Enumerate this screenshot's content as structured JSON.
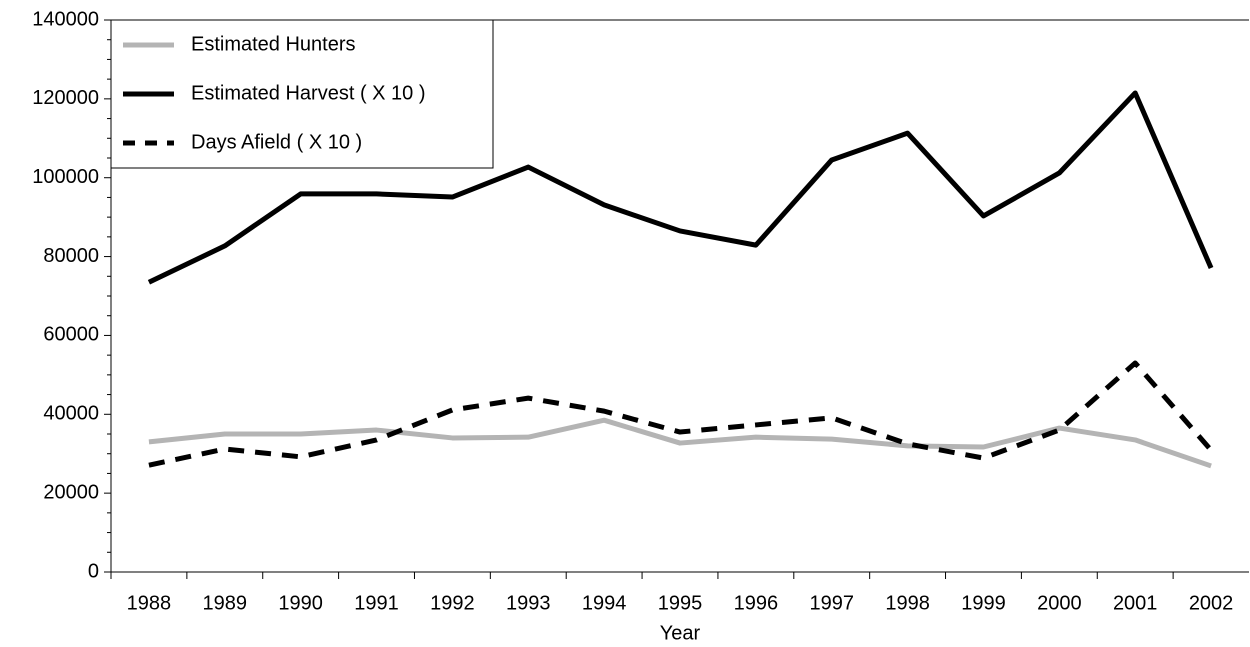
{
  "chart_data": {
    "type": "line",
    "x_label": "Year",
    "categories": [
      "1988",
      "1989",
      "1990",
      "1991",
      "1992",
      "1993",
      "1994",
      "1995",
      "1996",
      "1997",
      "1998",
      "1999",
      "2000",
      "2001",
      "2002"
    ],
    "series": [
      {
        "name": "Estimated Hunters",
        "color": "#b4b4b4",
        "dash": "solid",
        "values": [
          33000,
          35000,
          35000,
          36000,
          34000,
          34200,
          38500,
          32700,
          34200,
          33700,
          32000,
          31700,
          36500,
          33500,
          26900
        ]
      },
      {
        "name": "Estimated Harvest ( X 10 )",
        "color": "#000000",
        "dash": "solid",
        "values": [
          73500,
          82700,
          95900,
          95900,
          95100,
          102700,
          93100,
          86500,
          82900,
          104500,
          111300,
          90300,
          101200,
          121500,
          77100
        ]
      },
      {
        "name": "Days Afield ( X 10 )",
        "color": "#000000",
        "dash": "dashed",
        "values": [
          27100,
          31200,
          29200,
          33500,
          41100,
          44100,
          40800,
          35500,
          37300,
          39100,
          32500,
          28900,
          36000,
          53000,
          30900
        ]
      }
    ],
    "ylim": [
      0,
      140000
    ],
    "yticks": [
      0,
      20000,
      40000,
      60000,
      80000,
      100000,
      120000,
      140000
    ],
    "legend": "top-left"
  }
}
